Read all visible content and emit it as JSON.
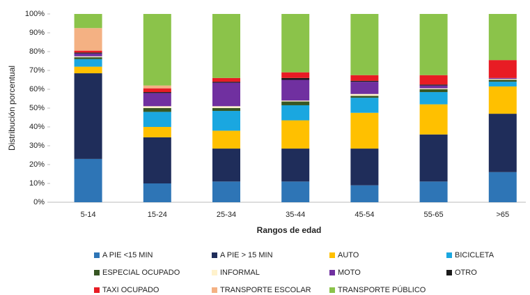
{
  "chart_data": {
    "type": "bar",
    "stacked": true,
    "x_label": "Rangos de edad",
    "y_label": "Distribución porcentual",
    "categories": [
      "5-14",
      "15-24",
      "25-34",
      "35-44",
      "45-54",
      "55-65",
      ">65"
    ],
    "ylim": [
      0,
      100
    ],
    "yticks": [
      {
        "value": 0,
        "label": "0%"
      },
      {
        "value": 10,
        "label": "10%"
      },
      {
        "value": 20,
        "label": "20%"
      },
      {
        "value": 30,
        "label": "30%"
      },
      {
        "value": 40,
        "label": "40%"
      },
      {
        "value": 50,
        "label": "50%"
      },
      {
        "value": 60,
        "label": "60%"
      },
      {
        "value": 70,
        "label": "70%"
      },
      {
        "value": 80,
        "label": "80%"
      },
      {
        "value": 90,
        "label": "90%"
      },
      {
        "value": 100,
        "label": "100%"
      }
    ],
    "grid": false,
    "legend_position": "bottom",
    "series": [
      {
        "name": "A PIE <15 MIN",
        "color": "#2e75b6",
        "values": [
          23,
          10,
          11,
          11,
          9,
          11,
          16
        ]
      },
      {
        "name": "A PIE > 15 MIN",
        "color": "#1f2d5a",
        "values": [
          45.5,
          24.5,
          17.5,
          17.5,
          19.5,
          25,
          31
        ]
      },
      {
        "name": "AUTO",
        "color": "#ffc000",
        "values": [
          3.5,
          5.5,
          9.5,
          15,
          19,
          16,
          14.5
        ]
      },
      {
        "name": "BICICLETA",
        "color": "#1aa7e0",
        "values": [
          4,
          8,
          10.5,
          8,
          8,
          6.5,
          2.5
        ]
      },
      {
        "name": "ESPECIAL OCUPADO",
        "color": "#375623",
        "values": [
          1,
          2,
          1.5,
          2,
          1,
          1.5,
          1
        ]
      },
      {
        "name": "INFORMAL",
        "color": "#fff2cc",
        "values": [
          0.5,
          1,
          1,
          0.5,
          1,
          0.5,
          0.5
        ]
      },
      {
        "name": "MOTO",
        "color": "#7030a0",
        "values": [
          1.5,
          7,
          12.5,
          11,
          6.5,
          1.5,
          0.5
        ]
      },
      {
        "name": "OTRO",
        "color": "#1a1a1a",
        "values": [
          0.5,
          0.5,
          0.5,
          1,
          0.5,
          0.5,
          0
        ]
      },
      {
        "name": "TAXI OCUPADO",
        "color": "#e81c24",
        "values": [
          1,
          2,
          2,
          3,
          3,
          5,
          9.5
        ]
      },
      {
        "name": "TRANSPORTE ESCOLAR",
        "color": "#f4b183",
        "values": [
          12,
          1.5,
          0,
          0,
          0,
          0,
          0
        ]
      },
      {
        "name": "TRANSPORTE PÚBLICO",
        "color": "#8bc34a",
        "values": [
          7.5,
          38,
          34,
          31,
          32.5,
          32.5,
          24.5
        ]
      }
    ]
  }
}
